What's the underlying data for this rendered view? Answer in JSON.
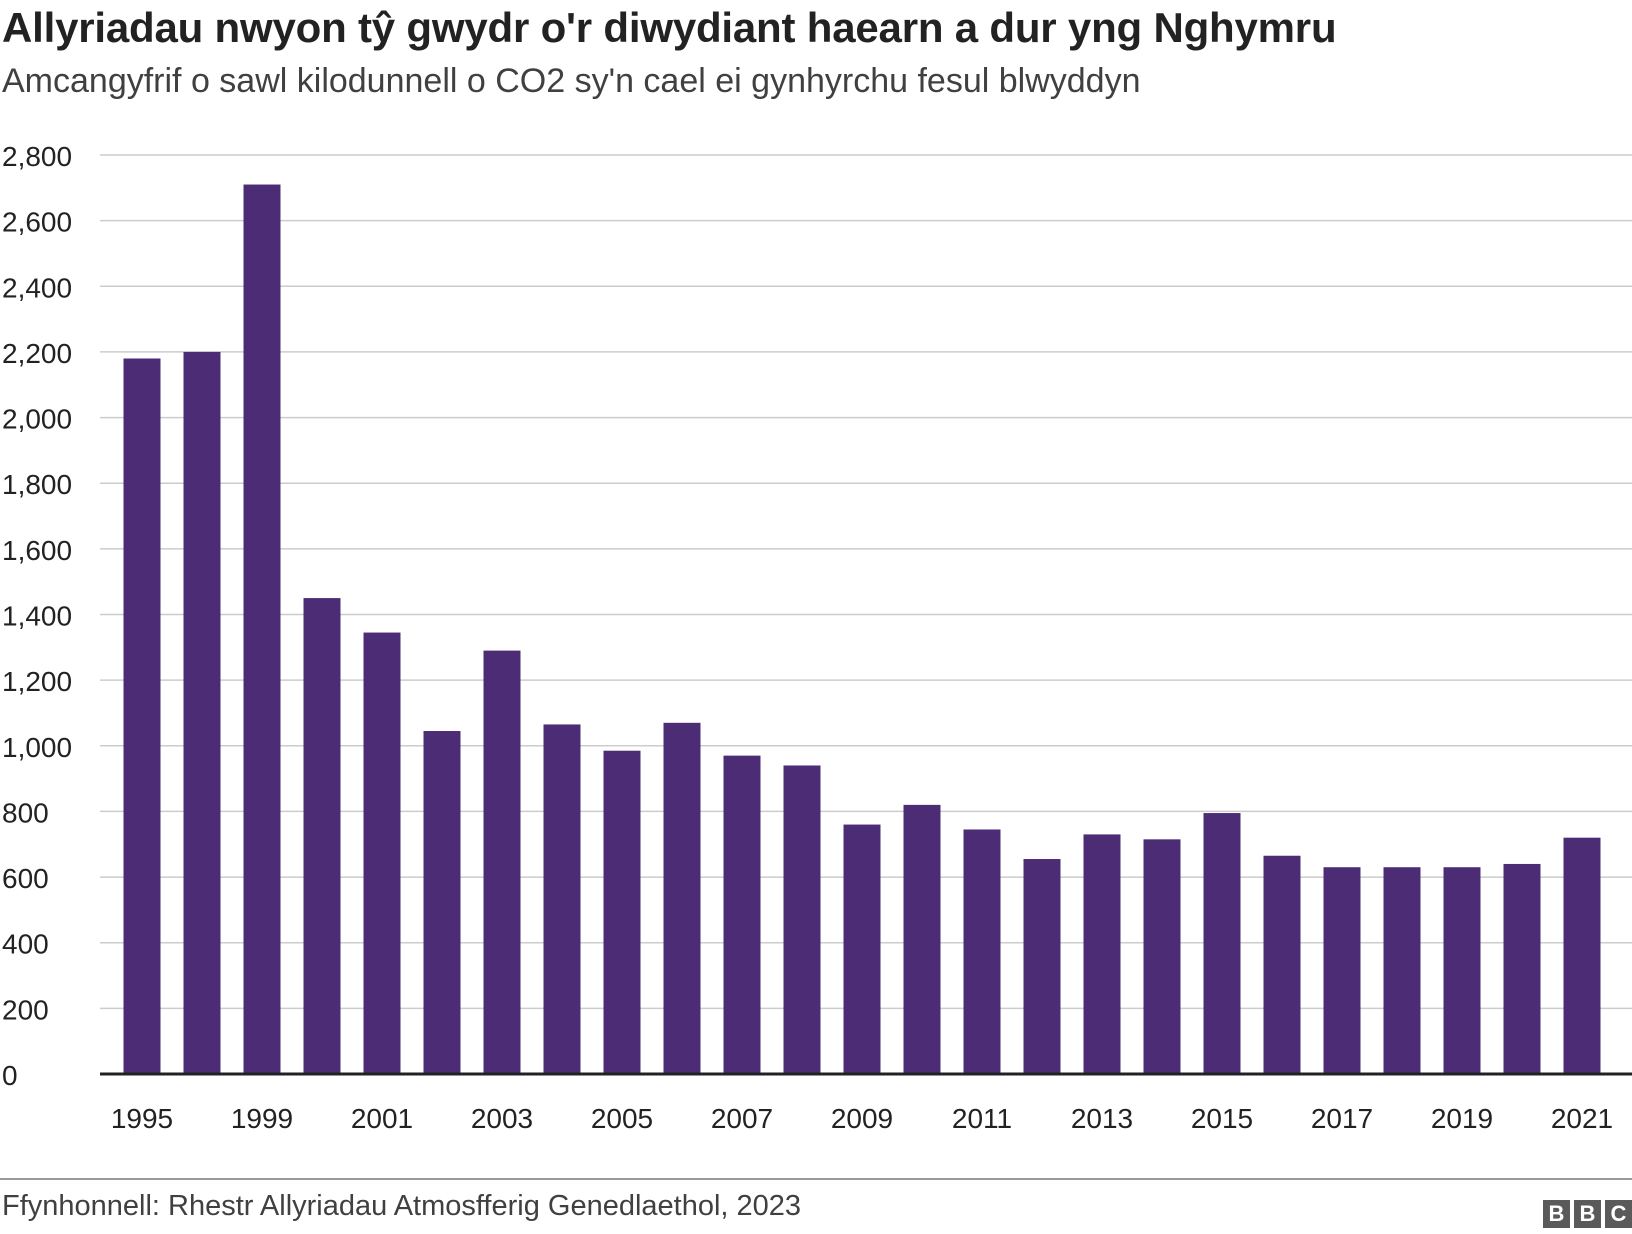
{
  "title": "Allyriadau nwyon tŷ gwydr o'r diwydiant haearn a dur yng Nghymru",
  "subtitle": "Amcangyfrif o sawl kilodunnell o CO2 sy'n cael ei gynhyrchu fesul blwyddyn",
  "source": "Ffynhonnell: Rhestr Allyriadau Atmosfferig Genedlaethol, 2023",
  "logo": [
    "B",
    "B",
    "C"
  ],
  "chart_data": {
    "type": "bar",
    "categories": [
      "1995",
      "1998",
      "1999",
      "2000",
      "2001",
      "2002",
      "2003",
      "2004",
      "2005",
      "2006",
      "2007",
      "2008",
      "2009",
      "2010",
      "2011",
      "2012",
      "2013",
      "2014",
      "2015",
      "2016",
      "2017",
      "2018",
      "2019",
      "2020",
      "2021"
    ],
    "x_tick_labels": [
      "1995",
      "1999",
      "2001",
      "2003",
      "2005",
      "2007",
      "2009",
      "2011",
      "2013",
      "2015",
      "2017",
      "2019",
      "2021"
    ],
    "values": [
      2180,
      2200,
      2710,
      1450,
      1345,
      1045,
      1290,
      1065,
      985,
      1070,
      970,
      940,
      760,
      820,
      745,
      655,
      730,
      715,
      795,
      665,
      630,
      630,
      630,
      640,
      720
    ],
    "ylim": [
      0,
      2800
    ],
    "y_ticks": [
      0,
      200,
      400,
      600,
      800,
      1000,
      1200,
      1400,
      1600,
      1800,
      2000,
      2200,
      2400,
      2600,
      2800
    ],
    "y_tick_labels": [
      "0",
      "200",
      "400",
      "600",
      "800",
      "1,000",
      "1,200",
      "1,400",
      "1,600",
      "1,800",
      "2,000",
      "2,200",
      "2,400",
      "2,600",
      "2,800"
    ],
    "xlabel": "",
    "ylabel": "",
    "grid": true,
    "bar_color": "#4d2c76"
  }
}
